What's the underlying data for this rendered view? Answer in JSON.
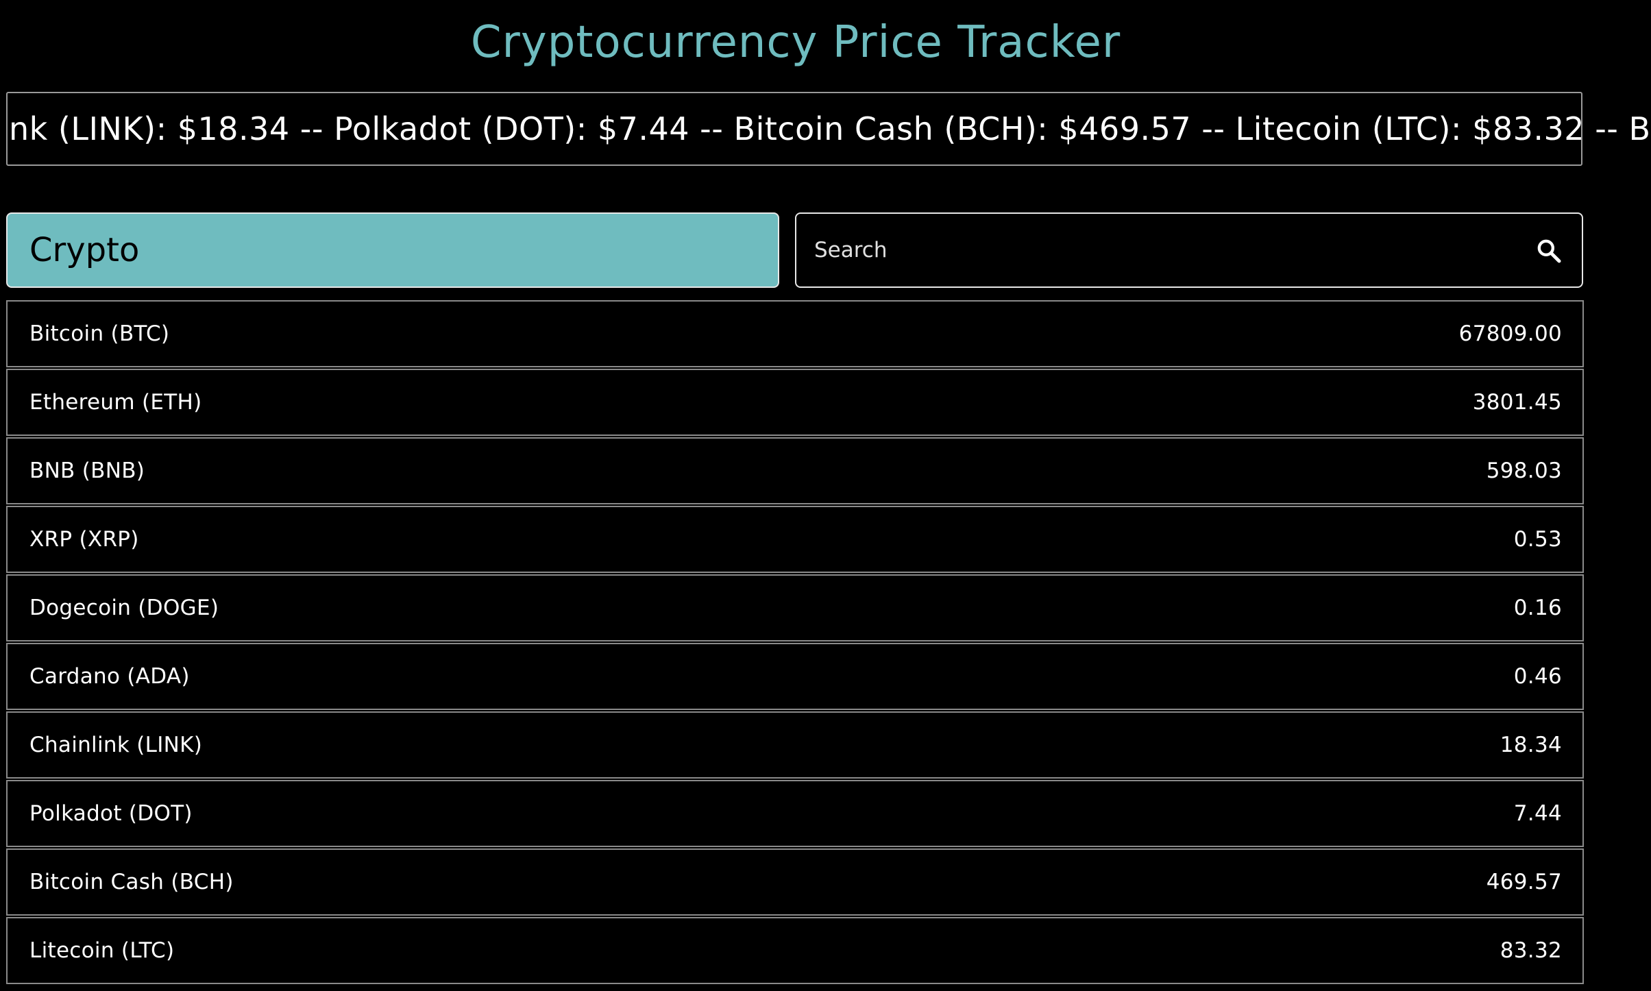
{
  "header": {
    "title": "Cryptocurrency Price Tracker",
    "title_color": "#6fbcbf"
  },
  "ticker": {
    "text": "nk (LINK): $18.34 -- Polkadot (DOT): $7.44 -- Bitcoin Cash (BCH): $469.57 -- Litecoin (LTC): $83.32 -- B"
  },
  "controls": {
    "category_button_label": "Crypto",
    "category_button_color": "#6fbcbf",
    "search_placeholder": "Search",
    "search_value": "",
    "search_icon": "search-icon"
  },
  "table": {
    "rows": [
      {
        "name": "Bitcoin (BTC)",
        "price": "67809.00"
      },
      {
        "name": "Ethereum (ETH)",
        "price": "3801.45"
      },
      {
        "name": "BNB (BNB)",
        "price": "598.03"
      },
      {
        "name": "XRP (XRP)",
        "price": "0.53"
      },
      {
        "name": "Dogecoin (DOGE)",
        "price": "0.16"
      },
      {
        "name": "Cardano (ADA)",
        "price": "0.46"
      },
      {
        "name": "Chainlink (LINK)",
        "price": "18.34"
      },
      {
        "name": "Polkadot (DOT)",
        "price": "7.44"
      },
      {
        "name": "Bitcoin Cash (BCH)",
        "price": "469.57"
      },
      {
        "name": "Litecoin (LTC)",
        "price": "83.32"
      }
    ]
  }
}
